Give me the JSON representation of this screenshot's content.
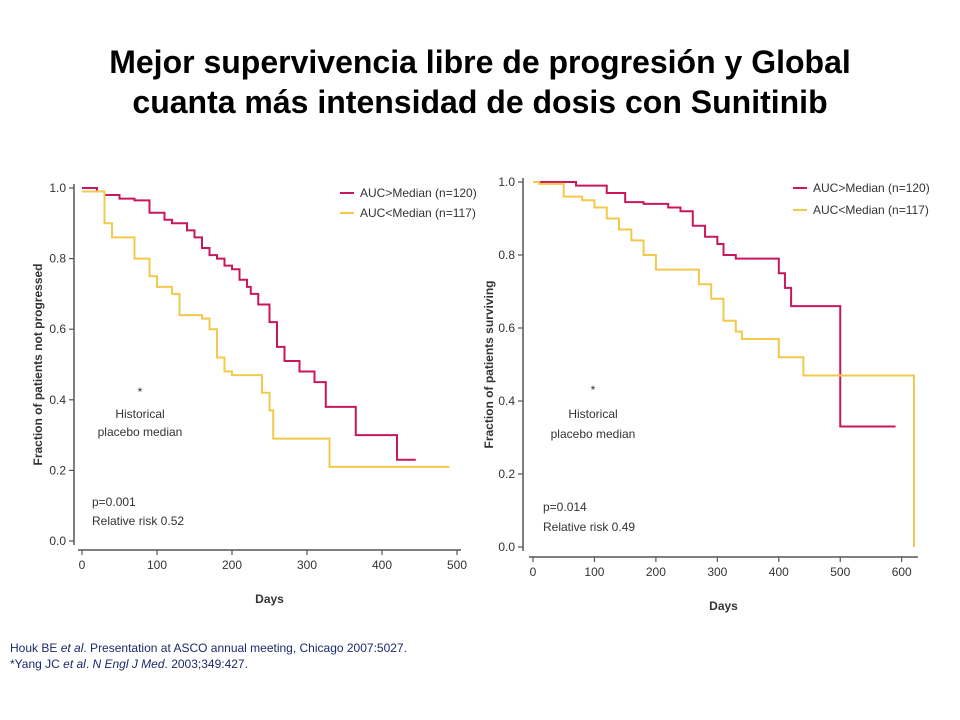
{
  "title": {
    "line1": "Mejor supervivencia libre de progresión y Global",
    "line2": "cuanta más intensidad de dosis con Sunitinib"
  },
  "footnote": {
    "line1_author": "Houk BE ",
    "line1_etal": "et al",
    "line1_rest": ". Presentation at ASCO annual meeting, Chicago 2007:5027.",
    "line2_author": "*Yang JC ",
    "line2_etal": "et al",
    "line2_mid": ". ",
    "line2_journal": "N Engl J Med",
    "line2_rest": ". 2003;349:427."
  },
  "colors": {
    "high": "#c8175d",
    "low": "#f2c94c"
  },
  "chart_data": [
    {
      "type": "line",
      "step": true,
      "xlabel": "Days",
      "ylabel": "Fraction of patients not progressed",
      "xlim": [
        0,
        500
      ],
      "ylim": [
        0,
        1.0
      ],
      "xticks": [
        "0",
        "100",
        "200",
        "300",
        "400",
        "500"
      ],
      "yticks": [
        "0.0",
        "0.2",
        "0.4",
        "0.6",
        "0.8",
        "1.0"
      ],
      "legend_position": "top-right",
      "series": [
        {
          "name": "AUC>Median (n=120)",
          "color": "#c8175d",
          "x": [
            0,
            20,
            30,
            50,
            70,
            90,
            110,
            120,
            140,
            150,
            160,
            170,
            180,
            190,
            200,
            210,
            220,
            225,
            235,
            250,
            260,
            270,
            290,
            310,
            325,
            365,
            420,
            445
          ],
          "y": [
            1.0,
            0.99,
            0.98,
            0.97,
            0.965,
            0.93,
            0.91,
            0.9,
            0.88,
            0.86,
            0.83,
            0.81,
            0.8,
            0.78,
            0.77,
            0.74,
            0.72,
            0.7,
            0.67,
            0.62,
            0.55,
            0.51,
            0.48,
            0.45,
            0.38,
            0.3,
            0.23,
            0.23
          ]
        },
        {
          "name": "AUC<Median (n=117)",
          "color": "#f2c94c",
          "x": [
            0,
            30,
            40,
            70,
            90,
            100,
            120,
            130,
            160,
            170,
            180,
            190,
            200,
            210,
            240,
            250,
            255,
            320,
            330,
            490
          ],
          "y": [
            0.99,
            0.9,
            0.86,
            0.8,
            0.75,
            0.72,
            0.7,
            0.64,
            0.63,
            0.6,
            0.52,
            0.48,
            0.47,
            0.47,
            0.42,
            0.37,
            0.29,
            0.29,
            0.21,
            0.21
          ]
        }
      ],
      "annotations": [
        "*",
        "Historical",
        "placebo median",
        "p=0.001",
        "Relative risk 0.52"
      ]
    },
    {
      "type": "line",
      "step": true,
      "xlabel": "Days",
      "ylabel": "Fraction of patients surviving",
      "xlim": [
        0,
        620
      ],
      "ylim": [
        0,
        1.0
      ],
      "xticks": [
        "0",
        "100",
        "200",
        "300",
        "400",
        "500",
        "600"
      ],
      "yticks": [
        "0.0",
        "0.2",
        "0.4",
        "0.6",
        "0.8",
        "1.0"
      ],
      "legend_position": "top-right",
      "series": [
        {
          "name": "AUC>Median (n=120)",
          "color": "#c8175d",
          "x": [
            0,
            70,
            120,
            150,
            180,
            220,
            240,
            260,
            280,
            300,
            310,
            330,
            400,
            410,
            420,
            450,
            500,
            590
          ],
          "y": [
            1.0,
            0.99,
            0.97,
            0.945,
            0.94,
            0.93,
            0.92,
            0.88,
            0.85,
            0.83,
            0.8,
            0.79,
            0.75,
            0.71,
            0.66,
            0.66,
            0.33,
            0.33
          ]
        },
        {
          "name": "AUC<Median (n=117)",
          "color": "#f2c94c",
          "x": [
            0,
            10,
            50,
            80,
            100,
            120,
            140,
            160,
            180,
            200,
            240,
            270,
            290,
            310,
            330,
            340,
            400,
            440,
            610,
            620
          ],
          "y": [
            1.0,
            0.995,
            0.96,
            0.95,
            0.93,
            0.9,
            0.87,
            0.84,
            0.8,
            0.76,
            0.76,
            0.72,
            0.68,
            0.62,
            0.59,
            0.57,
            0.52,
            0.47,
            0.47,
            0.0
          ]
        }
      ],
      "annotations": [
        "*",
        "Historical",
        "placebo median",
        "p=0.014",
        "Relative risk 0.49"
      ]
    }
  ]
}
